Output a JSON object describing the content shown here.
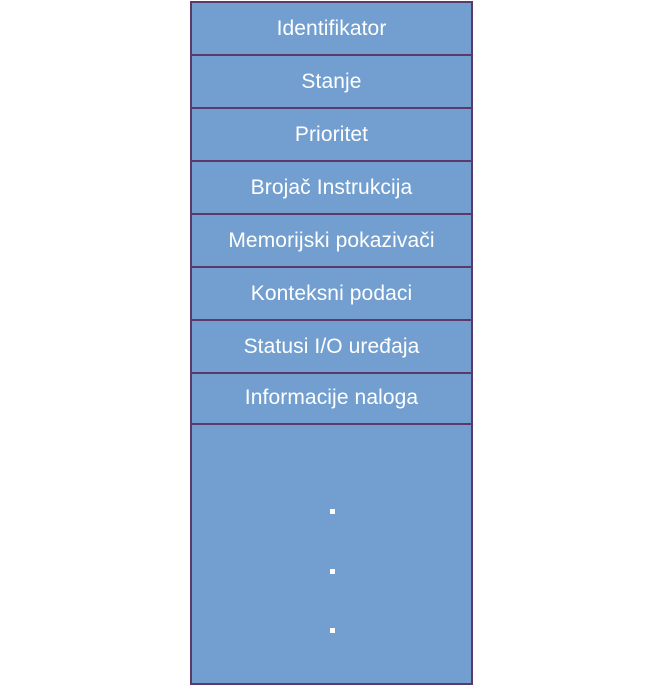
{
  "pcb": {
    "fields": [
      "Identifikator",
      "Stanje",
      "Prioritet",
      "Brojač Instrukcija",
      "Memorijski pokazivači",
      "Konteksni podaci",
      "Statusi I/O uređaja",
      "Informacije naloga"
    ],
    "continuation": "..."
  },
  "colors": {
    "fill": "#729fcf",
    "border": "#5a3a6b",
    "text": "#ffffff"
  }
}
